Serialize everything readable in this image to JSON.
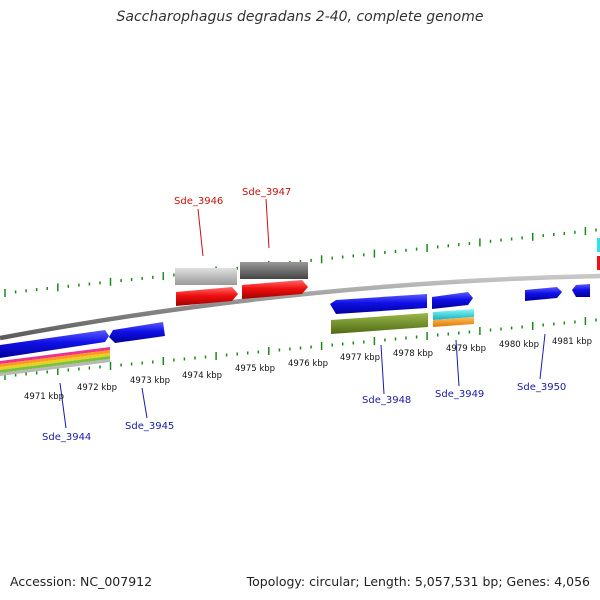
{
  "title": "Saccharophagus degradans 2-40, complete genome",
  "footer": {
    "accession": "Accession: NC_007912",
    "topology": "Topology: circular; Length: 5,057,531 bp; Genes: 4,056"
  },
  "colors": {
    "tick": "#1a8a1a",
    "backbone": "#8a8a8a",
    "gene_blue": "#1515e0",
    "gene_red": "#ee1111",
    "label_blue": "#1a1aaa",
    "label_red": "#cc1111"
  },
  "kbp_labels": [
    "4971 kbp",
    "4972 kbp",
    "4973 kbp",
    "4974 kbp",
    "4975 kbp",
    "4976 kbp",
    "4977 kbp",
    "4978 kbp",
    "4979 kbp",
    "4980 kbp",
    "4981 kbp"
  ],
  "gene_labels": {
    "top": [
      "Sde_3946",
      "Sde_3947"
    ],
    "bottom": [
      "Sde_3944",
      "Sde_3945",
      "Sde_3948",
      "Sde_3949",
      "Sde_3950"
    ]
  }
}
